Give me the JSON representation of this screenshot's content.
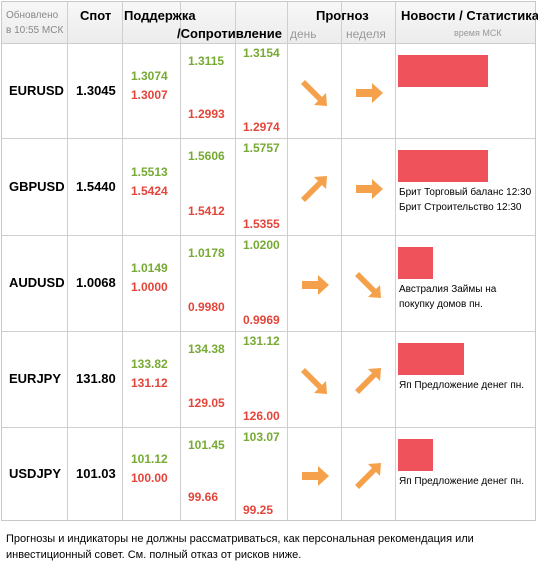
{
  "header": {
    "updated_line1": "Обновлено",
    "updated_line2": "в 10:55 МСК",
    "spot": "Спот",
    "support": "Поддержка",
    "resistance": "/Сопротивление",
    "forecast": "Прогноз",
    "day": "день",
    "week": "неделя",
    "news": "Новости / Статистика",
    "time_msk": "время МСК"
  },
  "colors": {
    "support": "#77aa33",
    "resistance": "#e4453a",
    "bar": "#f0525c",
    "arrow": "#f5a04a"
  },
  "rows": [
    {
      "symbol": "EURUSD",
      "spot": "1.3045",
      "s1": "1.3074",
      "r1": "1.3007",
      "s2": "1.3115",
      "r2": "1.2993",
      "s3": "1.3154",
      "r3": "1.2974",
      "day_icon": "arrow-down-right-icon",
      "week_icon": "arrow-right-icon",
      "news_level": 0.85,
      "news": []
    },
    {
      "symbol": "GBPUSD",
      "spot": "1.5440",
      "s1": "1.5513",
      "r1": "1.5424",
      "s2": "1.5606",
      "r2": "1.5412",
      "s3": "1.5757",
      "r3": "1.5355",
      "day_icon": "arrow-up-right-icon",
      "week_icon": "arrow-right-icon",
      "news_level": 0.85,
      "news": [
        "Брит Торговый баланс 12:30",
        "Брит Строительство 12:30"
      ]
    },
    {
      "symbol": "AUDUSD",
      "spot": "1.0068",
      "s1": "1.0149",
      "r1": "1.0000",
      "s2": "1.0178",
      "r2": "0.9980",
      "s3": "1.0200",
      "r3": "0.9969",
      "day_icon": "arrow-right-icon",
      "week_icon": "arrow-down-right-icon",
      "news_level": 0.33,
      "news": [
        "Австралия Займы на",
        "покупку домов пн."
      ]
    },
    {
      "symbol": "EURJPY",
      "spot": "131.80",
      "s1": "133.82",
      "r1": "131.12",
      "s2": "134.38",
      "r2": "129.05",
      "s3": "131.12",
      "r3": "126.00",
      "day_icon": "arrow-down-right-icon",
      "week_icon": "arrow-up-right-icon",
      "news_level": 0.62,
      "news": [
        "Яп Предложение денег пн."
      ]
    },
    {
      "symbol": "USDJPY",
      "spot": "101.03",
      "s1": "101.12",
      "r1": "100.00",
      "s2": "101.45",
      "r2": "99.66",
      "s3": "103.07",
      "r3": "99.25",
      "day_icon": "arrow-right-icon",
      "week_icon": "arrow-up-right-icon",
      "news_level": 0.33,
      "news": [
        "Яп Предложение денег пн."
      ]
    }
  ],
  "disclaimer": "Прогнозы и индикаторы не должны рассматриваться, как персональная рекомендация или инвестиционный совет. См. полный отказ от рисков ниже."
}
